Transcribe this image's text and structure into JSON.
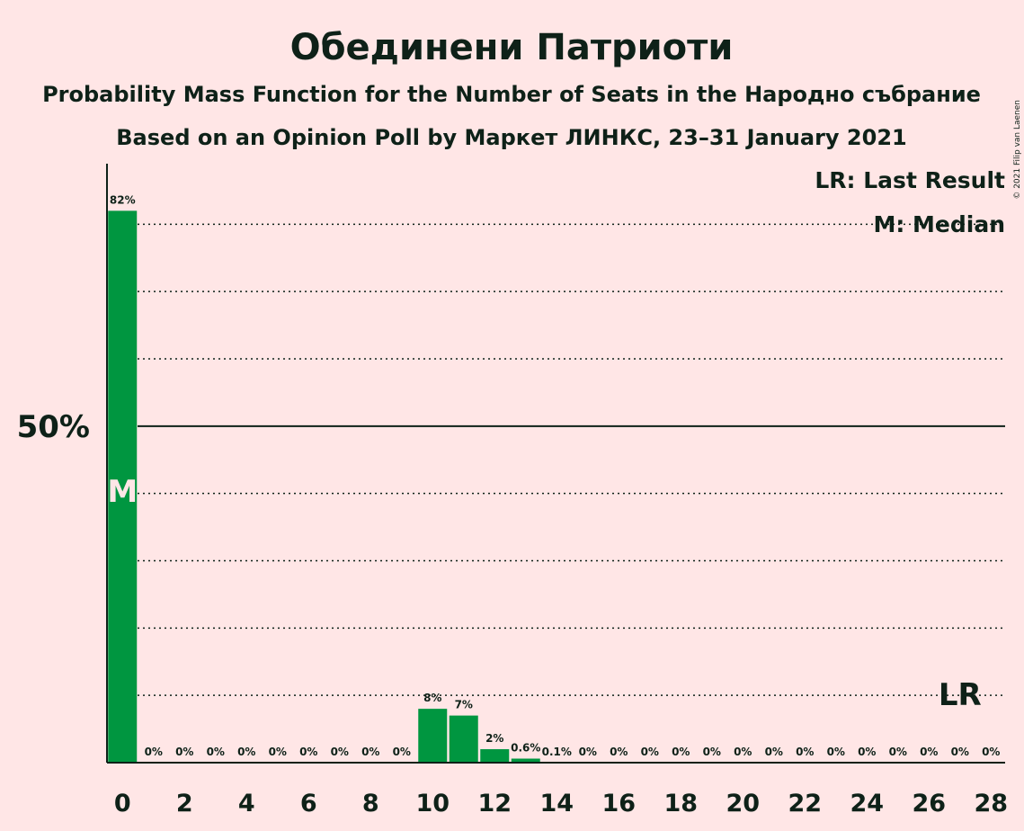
{
  "chart_data": {
    "type": "bar",
    "title": "Обединени Патриоти",
    "subtitle_lines": [
      "Probability Mass Function for the Number of Seats in the Народно събрание",
      "Based on an Opinion Poll by Маркет ЛИНКС, 23–31 January 2021"
    ],
    "copyright": "© 2021 Filip van Laenen",
    "legend": [
      "LR: Last Result",
      "M: Median"
    ],
    "x": [
      0,
      1,
      2,
      3,
      4,
      5,
      6,
      7,
      8,
      9,
      10,
      11,
      12,
      13,
      14,
      15,
      16,
      17,
      18,
      19,
      20,
      21,
      22,
      23,
      24,
      25,
      26,
      27,
      28
    ],
    "values": [
      82,
      0,
      0,
      0,
      0,
      0,
      0,
      0,
      0,
      0,
      8,
      7,
      2,
      0.6,
      0.1,
      0,
      0,
      0,
      0,
      0,
      0,
      0,
      0,
      0,
      0,
      0,
      0,
      0,
      0
    ],
    "labels": [
      "82%",
      "0%",
      "0%",
      "0%",
      "0%",
      "0%",
      "0%",
      "0%",
      "0%",
      "0%",
      "8%",
      "7%",
      "2%",
      "0.6%",
      "0.1%",
      "0%",
      "0%",
      "0%",
      "0%",
      "0%",
      "0%",
      "0%",
      "0%",
      "0%",
      "0%",
      "0%",
      "0%",
      "0%",
      "0%"
    ],
    "xticks": [
      0,
      2,
      4,
      6,
      8,
      10,
      12,
      14,
      16,
      18,
      20,
      22,
      24,
      26,
      28
    ],
    "ytick_label": "50%",
    "ytick_value": 50,
    "gridlines": [
      10,
      20,
      30,
      40,
      60,
      70,
      80
    ],
    "ylim": [
      0,
      89
    ],
    "median_seat": 0,
    "median_mark": "M",
    "last_result_seat": 27,
    "last_result_mark": "LR",
    "bar_color": "#009640",
    "background": "#FFE6E6",
    "text_color": "#0E2118"
  }
}
